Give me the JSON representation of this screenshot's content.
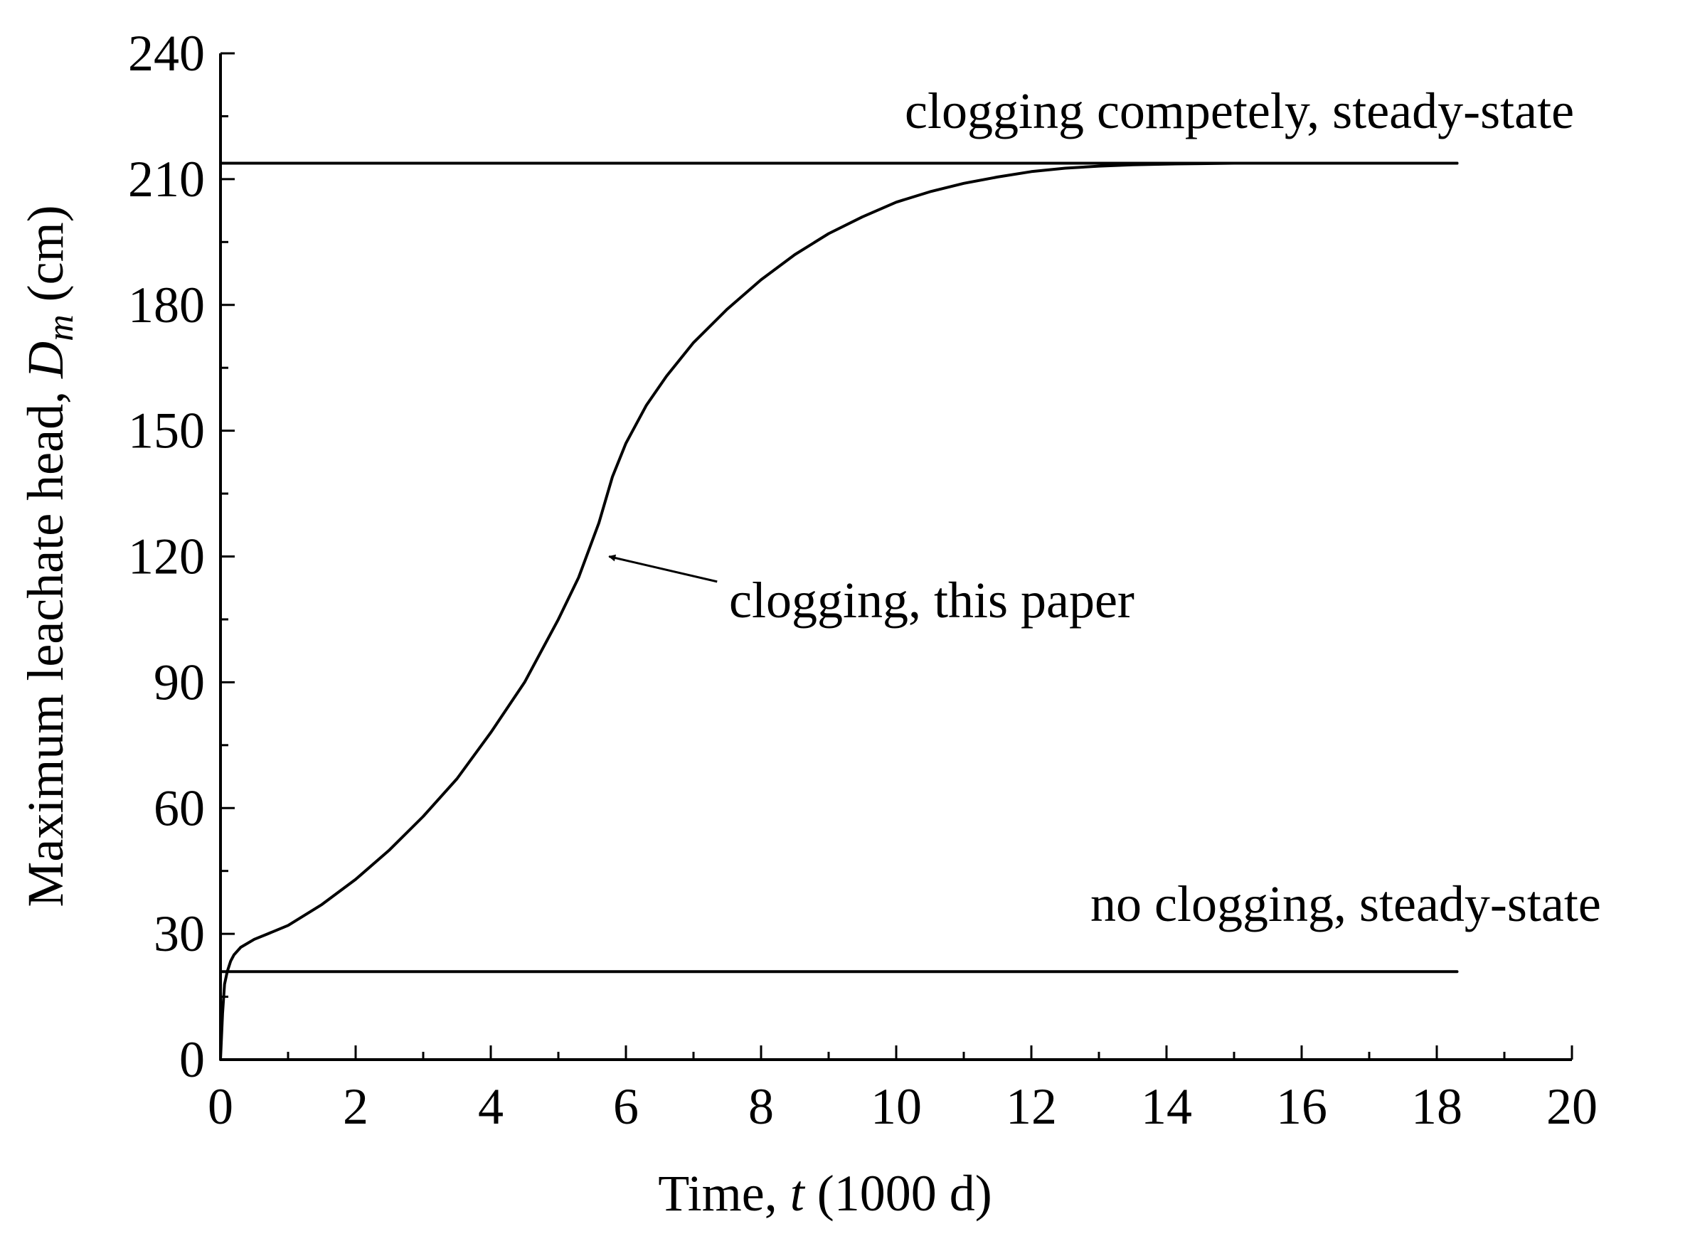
{
  "chart_data": {
    "type": "line",
    "xlabel": {
      "prefix": "Time, ",
      "var": "t",
      "suffix": " (1000 d)"
    },
    "ylabel": {
      "prefix": "Maximum leachate head, ",
      "var": "D",
      "sub": "m",
      "suffix": " (cm)"
    },
    "xlim": [
      0,
      20
    ],
    "ylim": [
      0,
      240
    ],
    "x_ticks": [
      0,
      2,
      4,
      6,
      8,
      10,
      12,
      14,
      16,
      18,
      20
    ],
    "y_ticks": [
      0,
      30,
      60,
      90,
      120,
      150,
      180,
      210,
      240
    ],
    "grid": false,
    "series": [
      {
        "name": "clogging, this paper",
        "x": [
          0,
          0.03,
          0.06,
          0.1,
          0.15,
          0.2,
          0.3,
          0.5,
          0.7,
          1.0,
          1.5,
          2.0,
          2.5,
          3.0,
          3.5,
          4.0,
          4.5,
          5.0,
          5.3,
          5.6,
          5.8,
          6.0,
          6.3,
          6.6,
          7.0,
          7.5,
          8.0,
          8.5,
          9.0,
          9.5,
          10.0,
          10.5,
          11.0,
          11.5,
          12.0,
          12.5,
          13.0,
          13.5,
          14.0,
          14.5,
          15.0,
          16.0,
          17.0,
          18.3
        ],
        "y": [
          0,
          11,
          18,
          21,
          23.5,
          25,
          26.8,
          28.7,
          30,
          32,
          37,
          43,
          50,
          58,
          67,
          78,
          90,
          105,
          115,
          128,
          139,
          147,
          156,
          163,
          171,
          179,
          186,
          192,
          197,
          201,
          204.5,
          207,
          209,
          210.5,
          211.8,
          212.6,
          213.1,
          213.4,
          213.6,
          213.7,
          213.8,
          213.8,
          213.8,
          213.8
        ]
      },
      {
        "name": "clogging completely, steady-state",
        "x": [
          0,
          18.3
        ],
        "y": [
          213.8,
          213.8
        ]
      },
      {
        "name": "no clogging, steady-state",
        "x": [
          0,
          18.3
        ],
        "y": [
          21,
          21
        ]
      }
    ],
    "annotations": {
      "clogging_completely": "clogging competely, steady-state",
      "clogging_this_paper": "clogging, this paper",
      "no_clogging": "no clogging, steady-state"
    },
    "arrow": {
      "to": [
        5.75,
        120
      ],
      "from": [
        7.35,
        114
      ]
    }
  }
}
